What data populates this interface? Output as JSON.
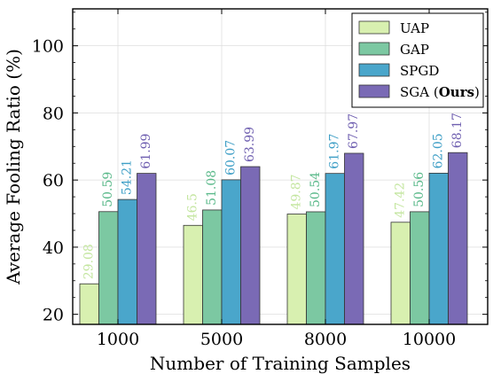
{
  "chart_data": {
    "type": "bar",
    "xlabel": "Number of Training Samples",
    "ylabel": "Average Fooling Ratio (%)",
    "categories": [
      "1000",
      "5000",
      "8000",
      "10000"
    ],
    "ylim": [
      17,
      111
    ],
    "yticks": [
      20,
      40,
      60,
      80,
      100
    ],
    "grid": true,
    "legend": "top-right",
    "series": [
      {
        "name": "UAP",
        "values": [
          29.08,
          46.5,
          49.87,
          47.42
        ],
        "labels": [
          "29.08",
          "46.5",
          "49.87",
          "47.42"
        ],
        "color": "#d8f0b0",
        "label_color": "#c4e6a0"
      },
      {
        "name": "GAP",
        "values": [
          50.59,
          51.08,
          50.54,
          50.56
        ],
        "labels": [
          "50.59",
          "51.08",
          "50.54",
          "50.56"
        ],
        "color": "#7cc8a2",
        "label_color": "#5ab98a"
      },
      {
        "name": "SPGD",
        "values": [
          54.21,
          60.07,
          61.97,
          62.05
        ],
        "labels": [
          "54.21",
          "60.07",
          "61.97",
          "62.05"
        ],
        "color": "#4aa6cb",
        "label_color": "#3f9fc6"
      },
      {
        "name": "SGA",
        "name_suffix": "Ours",
        "values": [
          61.99,
          63.99,
          67.97,
          68.17
        ],
        "labels": [
          "61.99",
          "63.99",
          "67.97",
          "68.17"
        ],
        "color": "#7a6ab5",
        "label_color": "#6f5fb0"
      }
    ]
  }
}
